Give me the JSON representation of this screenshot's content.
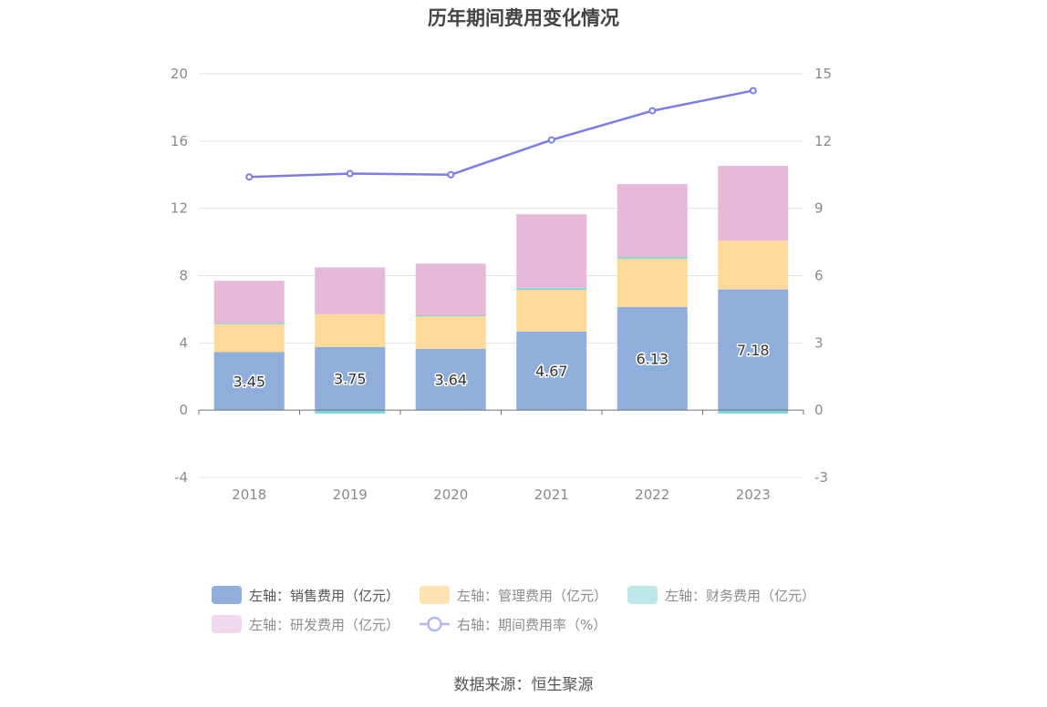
{
  "title": "历年期间费用变化情况",
  "source": "数据来源：恒生聚源",
  "legend": [
    {
      "label": "左轴：销售费用（亿元）",
      "color": "#8faedb",
      "muted": false
    },
    {
      "label": "左轴：管理费用（亿元）",
      "color": "#fde4b2",
      "muted": true
    },
    {
      "label": "左轴：财务费用（亿元）",
      "color": "#bfe7ea",
      "muted": true
    },
    {
      "label": "左轴：研发费用（亿元）",
      "color": "#f0d9ec",
      "muted": true
    },
    {
      "label": "右轴：期间费用率（%）",
      "color": "#7b7de5",
      "muted": true
    }
  ],
  "chart_data": {
    "type": "bar",
    "categories": [
      "2018",
      "2019",
      "2020",
      "2021",
      "2022",
      "2023"
    ],
    "left_axis": {
      "ylim": [
        -4,
        20
      ],
      "ticks": [
        "-4",
        "0",
        "4",
        "8",
        "12",
        "16",
        "20"
      ]
    },
    "right_axis": {
      "ylim": [
        -3,
        15
      ],
      "ticks": [
        "-3",
        "0",
        "3",
        "6",
        "9",
        "12",
        "15"
      ]
    },
    "series": [
      {
        "name": "左轴：销售费用（亿元）",
        "axis": "left",
        "stack": true,
        "color": "#8faedb",
        "values": [
          3.45,
          3.75,
          3.64,
          4.67,
          6.13,
          7.18
        ],
        "labels": [
          "3.45",
          "3.75",
          "3.64",
          "4.67",
          "6.13",
          "7.18"
        ]
      },
      {
        "name": "左轴：管理费用（亿元）",
        "axis": "left",
        "stack": true,
        "color": "#fdd99a",
        "values": [
          1.66,
          1.95,
          1.95,
          2.49,
          2.88,
          2.9
        ]
      },
      {
        "name": "左轴：财务费用（亿元）",
        "axis": "left",
        "stack": true,
        "color": "#7fd3dd",
        "values": [
          0.05,
          -0.2,
          0.05,
          0.1,
          0.1,
          -0.2
        ]
      },
      {
        "name": "左轴：研发费用（亿元）",
        "axis": "left",
        "stack": true,
        "color": "#e6b9d9",
        "values": [
          2.53,
          2.79,
          3.07,
          4.39,
          4.33,
          4.44
        ]
      },
      {
        "name": "右轴：期间费用率（%）",
        "axis": "right",
        "type": "line",
        "color": "#7b7de5",
        "values": [
          10.4,
          10.55,
          10.5,
          12.05,
          13.35,
          14.25
        ]
      }
    ]
  }
}
